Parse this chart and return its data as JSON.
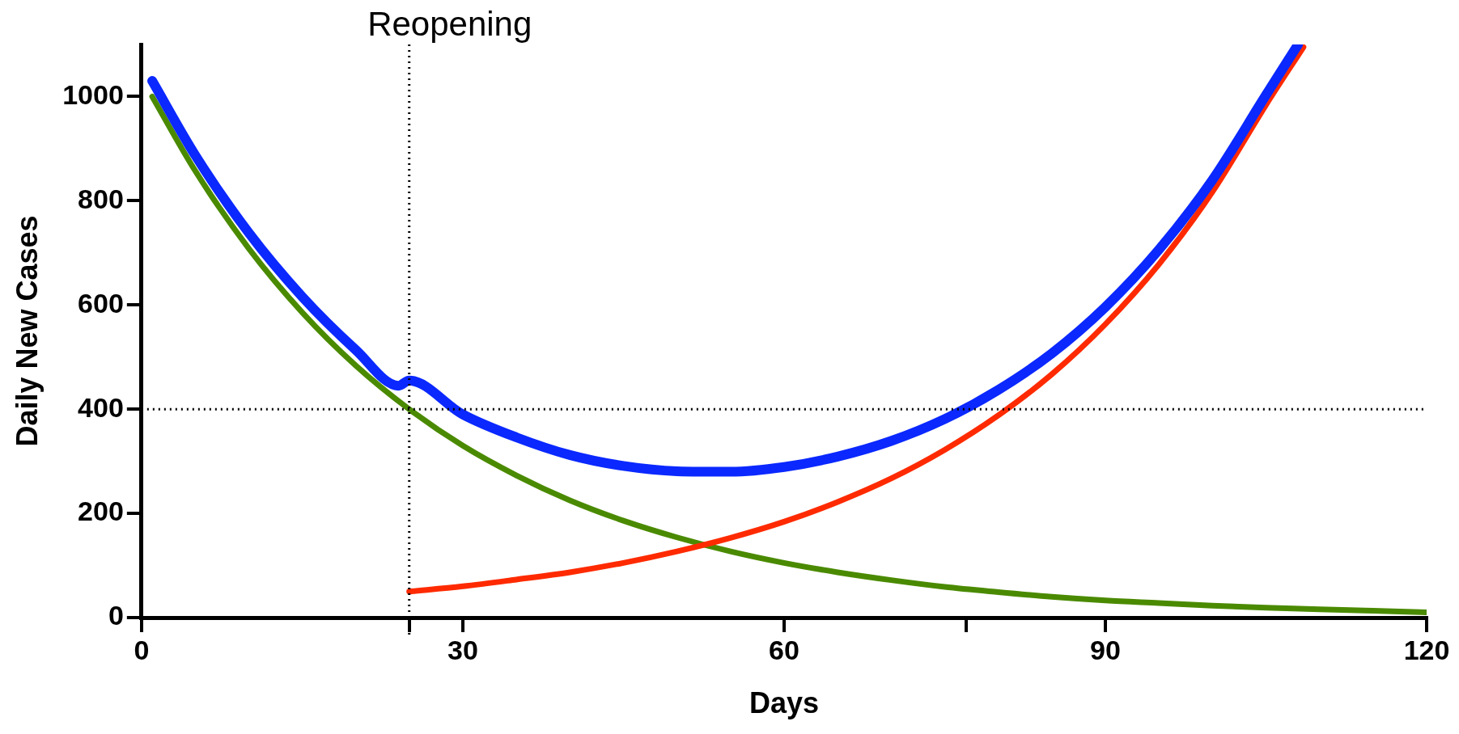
{
  "chart_data": {
    "type": "line",
    "xlabel": "Days",
    "ylabel": "Daily New Cases",
    "xlim": [
      0,
      120
    ],
    "xticks": [
      0,
      {
        "value": 25,
        "label": null
      },
      30,
      60,
      {
        "value": 77,
        "label": null
      },
      90,
      120
    ],
    "ylim": [
      0,
      1100
    ],
    "yticks": [
      0,
      200,
      400,
      600,
      800,
      1000
    ],
    "grid": false,
    "legend": false,
    "marker": "none",
    "line_style": "solid",
    "ref_lines": [
      {
        "axis": "x",
        "value": 25,
        "label": "Reopening",
        "line_style": "dotted",
        "color": "#000000"
      },
      {
        "axis": "y",
        "value": 400,
        "line_style": "dotted",
        "color": "#000000"
      }
    ],
    "series": [
      {
        "color": "#4a8a00",
        "x": [
          1,
          5,
          10,
          15,
          20,
          25,
          30,
          35,
          40,
          45,
          50,
          55,
          60,
          65,
          70,
          75,
          80,
          85,
          90,
          95,
          100,
          105,
          110,
          115,
          120
        ],
        "values": [
          1000,
          858,
          709,
          586,
          484,
          400,
          330,
          273,
          225,
          186,
          154,
          127,
          105,
          87,
          72,
          59,
          49,
          40,
          33,
          28,
          23,
          19,
          16,
          13,
          10
        ]
      },
      {
        "color": "#ff2a00",
        "x": [
          25,
          30,
          35,
          40,
          45,
          50,
          55,
          60,
          65,
          70,
          75,
          80,
          85,
          90,
          95,
          100,
          105,
          108.5
        ],
        "values": [
          50,
          60,
          73,
          87,
          105,
          127,
          153,
          184,
          222,
          267,
          322,
          388,
          467,
          563,
          678,
          817,
          984,
          1095
        ]
      },
      {
        "color": "#0a28ff",
        "x": [
          1,
          5,
          10,
          15,
          20,
          24,
          25,
          30,
          35,
          40,
          45,
          50,
          55,
          60,
          65,
          70,
          75,
          80,
          85,
          90,
          95,
          100,
          105,
          108
        ],
        "values": [
          1030,
          888,
          739,
          616,
          514,
          445,
          455,
          390,
          346,
          312,
          291,
          281,
          280,
          289,
          309,
          339,
          381,
          437,
          507,
          596,
          706,
          840,
          1003,
          1100
        ]
      }
    ]
  }
}
